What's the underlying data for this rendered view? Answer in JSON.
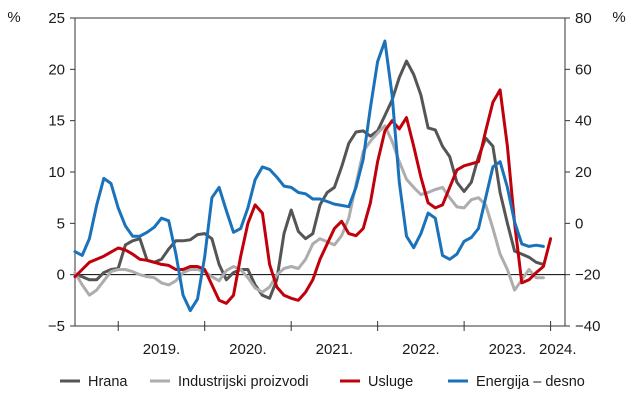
{
  "chart_data": {
    "type": "line",
    "left_axis": {
      "unit": "%",
      "min": -5,
      "max": 25,
      "ticks": [
        -5,
        0,
        5,
        10,
        15,
        20,
        25
      ]
    },
    "right_axis": {
      "unit": "%",
      "min": -40,
      "max": 80,
      "ticks": [
        -40,
        -20,
        0,
        20,
        40,
        60,
        80
      ]
    },
    "x_start": "2018-07",
    "x_end": "2024-03",
    "year_labels": [
      {
        "label": "2019.",
        "center": "2019-07"
      },
      {
        "label": "2020.",
        "center": "2020-07"
      },
      {
        "label": "2021.",
        "center": "2021-07"
      },
      {
        "label": "2022.",
        "center": "2022-07"
      },
      {
        "label": "2023.",
        "center": "2023-07"
      },
      {
        "label": "2024.",
        "center": "2024-02"
      }
    ],
    "year_boundaries": [
      "2019-01",
      "2020-01",
      "2021-01",
      "2022-01",
      "2023-01",
      "2024-01"
    ],
    "grid": false,
    "legend_position": "bottom",
    "series": [
      {
        "name": "Hrana",
        "axis": "left",
        "color": "#555555",
        "points": [
          [
            "2018-07",
            0.0
          ],
          [
            "2018-08",
            -0.2
          ],
          [
            "2018-09",
            -0.5
          ],
          [
            "2018-10",
            -0.5
          ],
          [
            "2018-11",
            0.2
          ],
          [
            "2018-12",
            0.5
          ],
          [
            "2019-01",
            0.6
          ],
          [
            "2019-02",
            2.9
          ],
          [
            "2019-03",
            3.3
          ],
          [
            "2019-04",
            3.5
          ],
          [
            "2019-05",
            1.4
          ],
          [
            "2019-06",
            1.2
          ],
          [
            "2019-07",
            1.5
          ],
          [
            "2019-08",
            2.5
          ],
          [
            "2019-09",
            3.3
          ],
          [
            "2019-10",
            3.3
          ],
          [
            "2019-11",
            3.4
          ],
          [
            "2019-12",
            3.9
          ],
          [
            "2020-01",
            4.0
          ],
          [
            "2020-02",
            3.5
          ],
          [
            "2020-03",
            1.0
          ],
          [
            "2020-04",
            -0.5
          ],
          [
            "2020-05",
            0.2
          ],
          [
            "2020-06",
            0.5
          ],
          [
            "2020-07",
            0.5
          ],
          [
            "2020-08",
            -1.0
          ],
          [
            "2020-09",
            -2.0
          ],
          [
            "2020-10",
            -2.3
          ],
          [
            "2020-11",
            -0.5
          ],
          [
            "2020-12",
            4.0
          ],
          [
            "2021-01",
            6.3
          ],
          [
            "2021-02",
            4.2
          ],
          [
            "2021-03",
            3.5
          ],
          [
            "2021-04",
            4.0
          ],
          [
            "2021-05",
            6.8
          ],
          [
            "2021-06",
            8.0
          ],
          [
            "2021-07",
            8.5
          ],
          [
            "2021-08",
            10.5
          ],
          [
            "2021-09",
            12.8
          ],
          [
            "2021-10",
            13.9
          ],
          [
            "2021-11",
            14.0
          ],
          [
            "2021-12",
            13.5
          ],
          [
            "2022-01",
            14.0
          ],
          [
            "2022-02",
            15.5
          ],
          [
            "2022-03",
            17.0
          ],
          [
            "2022-04",
            19.2
          ],
          [
            "2022-05",
            20.8
          ],
          [
            "2022-06",
            19.5
          ],
          [
            "2022-07",
            17.5
          ],
          [
            "2022-08",
            14.3
          ],
          [
            "2022-09",
            14.1
          ],
          [
            "2022-10",
            12.5
          ],
          [
            "2022-11",
            11.5
          ],
          [
            "2022-12",
            9.0
          ],
          [
            "2023-01",
            8.1
          ],
          [
            "2023-02",
            9.0
          ],
          [
            "2023-03",
            11.5
          ],
          [
            "2023-04",
            13.3
          ],
          [
            "2023-05",
            12.5
          ],
          [
            "2023-06",
            8.0
          ],
          [
            "2023-07",
            5.0
          ],
          [
            "2023-08",
            2.3
          ],
          [
            "2023-09",
            2.0
          ],
          [
            "2023-10",
            1.7
          ],
          [
            "2023-11",
            1.2
          ],
          [
            "2023-12",
            1.0
          ]
        ]
      },
      {
        "name": "Industrijski proizvodi",
        "axis": "left",
        "color": "#adadad",
        "points": [
          [
            "2018-07",
            0.2
          ],
          [
            "2018-08",
            -1.0
          ],
          [
            "2018-09",
            -2.0
          ],
          [
            "2018-10",
            -1.5
          ],
          [
            "2018-11",
            -0.6
          ],
          [
            "2018-12",
            0.3
          ],
          [
            "2019-01",
            0.5
          ],
          [
            "2019-02",
            0.5
          ],
          [
            "2019-03",
            0.3
          ],
          [
            "2019-04",
            0.0
          ],
          [
            "2019-05",
            -0.2
          ],
          [
            "2019-06",
            -0.3
          ],
          [
            "2019-07",
            -0.8
          ],
          [
            "2019-08",
            -1.0
          ],
          [
            "2019-09",
            -0.6
          ],
          [
            "2019-10",
            0.2
          ],
          [
            "2019-11",
            0.5
          ],
          [
            "2019-12",
            0.5
          ],
          [
            "2020-01",
            0.3
          ],
          [
            "2020-02",
            -0.2
          ],
          [
            "2020-03",
            -0.6
          ],
          [
            "2020-04",
            0.4
          ],
          [
            "2020-05",
            0.8
          ],
          [
            "2020-06",
            0.5
          ],
          [
            "2020-07",
            -0.3
          ],
          [
            "2020-08",
            -1.3
          ],
          [
            "2020-09",
            -1.7
          ],
          [
            "2020-10",
            -1.2
          ],
          [
            "2020-11",
            0.0
          ],
          [
            "2020-12",
            0.6
          ],
          [
            "2021-01",
            0.8
          ],
          [
            "2021-02",
            0.6
          ],
          [
            "2021-03",
            1.5
          ],
          [
            "2021-04",
            3.0
          ],
          [
            "2021-05",
            3.5
          ],
          [
            "2021-06",
            3.2
          ],
          [
            "2021-07",
            2.9
          ],
          [
            "2021-08",
            3.8
          ],
          [
            "2021-09",
            5.5
          ],
          [
            "2021-10",
            8.8
          ],
          [
            "2021-11",
            12.0
          ],
          [
            "2021-12",
            13.0
          ],
          [
            "2022-01",
            13.8
          ],
          [
            "2022-02",
            14.5
          ],
          [
            "2022-03",
            13.0
          ],
          [
            "2022-04",
            11.0
          ],
          [
            "2022-05",
            9.3
          ],
          [
            "2022-06",
            8.5
          ],
          [
            "2022-07",
            7.8
          ],
          [
            "2022-08",
            8.0
          ],
          [
            "2022-09",
            8.3
          ],
          [
            "2022-10",
            8.5
          ],
          [
            "2022-11",
            7.5
          ],
          [
            "2022-12",
            6.6
          ],
          [
            "2023-01",
            6.5
          ],
          [
            "2023-02",
            7.3
          ],
          [
            "2023-03",
            7.5
          ],
          [
            "2023-04",
            6.8
          ],
          [
            "2023-05",
            4.5
          ],
          [
            "2023-06",
            2.0
          ],
          [
            "2023-07",
            0.5
          ],
          [
            "2023-08",
            -1.5
          ],
          [
            "2023-09",
            -0.5
          ],
          [
            "2023-10",
            0.5
          ],
          [
            "2023-11",
            -0.3
          ],
          [
            "2023-12",
            -0.3
          ]
        ]
      },
      {
        "name": "Usluge",
        "axis": "left",
        "color": "#c0000b",
        "points": [
          [
            "2018-07",
            -0.2
          ],
          [
            "2018-08",
            0.5
          ],
          [
            "2018-09",
            1.2
          ],
          [
            "2018-10",
            1.5
          ],
          [
            "2018-11",
            1.8
          ],
          [
            "2018-12",
            2.2
          ],
          [
            "2019-01",
            2.6
          ],
          [
            "2019-02",
            2.4
          ],
          [
            "2019-03",
            2.0
          ],
          [
            "2019-04",
            1.5
          ],
          [
            "2019-05",
            1.4
          ],
          [
            "2019-06",
            1.2
          ],
          [
            "2019-07",
            1.0
          ],
          [
            "2019-08",
            0.9
          ],
          [
            "2019-09",
            0.5
          ],
          [
            "2019-10",
            0.5
          ],
          [
            "2019-11",
            0.8
          ],
          [
            "2019-12",
            0.8
          ],
          [
            "2020-01",
            0.5
          ],
          [
            "2020-02",
            -1.0
          ],
          [
            "2020-03",
            -2.5
          ],
          [
            "2020-04",
            -2.8
          ],
          [
            "2020-05",
            -2.0
          ],
          [
            "2020-06",
            1.8
          ],
          [
            "2020-07",
            5.0
          ],
          [
            "2020-08",
            6.8
          ],
          [
            "2020-09",
            6.0
          ],
          [
            "2020-10",
            1.0
          ],
          [
            "2020-11",
            -1.2
          ],
          [
            "2020-12",
            -2.0
          ],
          [
            "2021-01",
            -2.3
          ],
          [
            "2021-02",
            -2.5
          ],
          [
            "2021-03",
            -1.7
          ],
          [
            "2021-04",
            -0.5
          ],
          [
            "2021-05",
            1.5
          ],
          [
            "2021-06",
            3.0
          ],
          [
            "2021-07",
            4.5
          ],
          [
            "2021-08",
            5.2
          ],
          [
            "2021-09",
            4.0
          ],
          [
            "2021-10",
            3.8
          ],
          [
            "2021-11",
            4.5
          ],
          [
            "2021-12",
            7.0
          ],
          [
            "2022-01",
            11.0
          ],
          [
            "2022-02",
            14.0
          ],
          [
            "2022-03",
            15.0
          ],
          [
            "2022-04",
            14.2
          ],
          [
            "2022-05",
            15.3
          ],
          [
            "2022-06",
            12.5
          ],
          [
            "2022-07",
            9.5
          ],
          [
            "2022-08",
            7.0
          ],
          [
            "2022-09",
            6.5
          ],
          [
            "2022-10",
            6.8
          ],
          [
            "2022-11",
            8.5
          ],
          [
            "2022-12",
            10.2
          ],
          [
            "2023-01",
            10.6
          ],
          [
            "2023-02",
            10.8
          ],
          [
            "2023-03",
            11.0
          ],
          [
            "2023-04",
            14.0
          ],
          [
            "2023-05",
            16.8
          ],
          [
            "2023-06",
            18.0
          ],
          [
            "2023-07",
            12.5
          ],
          [
            "2023-08",
            5.0
          ],
          [
            "2023-09",
            -0.8
          ],
          [
            "2023-10",
            -0.5
          ],
          [
            "2023-11",
            0.2
          ],
          [
            "2023-12",
            0.8
          ],
          [
            "2024-01",
            3.5
          ]
        ]
      },
      {
        "name": "Energija – desno",
        "axis": "right",
        "color": "#1a72bb",
        "points": [
          [
            "2018-07",
            -11.0
          ],
          [
            "2018-08",
            -12.5
          ],
          [
            "2018-09",
            -6.0
          ],
          [
            "2018-10",
            7.0
          ],
          [
            "2018-11",
            17.5
          ],
          [
            "2018-12",
            15.5
          ],
          [
            "2019-01",
            6.0
          ],
          [
            "2019-02",
            -1.0
          ],
          [
            "2019-03",
            -5.0
          ],
          [
            "2019-04",
            -5.0
          ],
          [
            "2019-05",
            -3.5
          ],
          [
            "2019-06",
            -1.5
          ],
          [
            "2019-07",
            2.0
          ],
          [
            "2019-08",
            1.0
          ],
          [
            "2019-09",
            -12.0
          ],
          [
            "2019-10",
            -28.0
          ],
          [
            "2019-11",
            -34.0
          ],
          [
            "2019-12",
            -29.5
          ],
          [
            "2020-01",
            -13.0
          ],
          [
            "2020-02",
            10.0
          ],
          [
            "2020-03",
            14.0
          ],
          [
            "2020-04",
            5.0
          ],
          [
            "2020-05",
            -3.5
          ],
          [
            "2020-06",
            -2.0
          ],
          [
            "2020-07",
            6.0
          ],
          [
            "2020-08",
            17.0
          ],
          [
            "2020-09",
            22.0
          ],
          [
            "2020-10",
            21.0
          ],
          [
            "2020-11",
            18.0
          ],
          [
            "2020-12",
            14.5
          ],
          [
            "2021-01",
            14.0
          ],
          [
            "2021-02",
            12.0
          ],
          [
            "2021-03",
            11.5
          ],
          [
            "2021-04",
            9.5
          ],
          [
            "2021-05",
            9.5
          ],
          [
            "2021-06",
            8.5
          ],
          [
            "2021-07",
            7.5
          ],
          [
            "2021-08",
            7.0
          ],
          [
            "2021-09",
            6.5
          ],
          [
            "2021-10",
            14.0
          ],
          [
            "2021-11",
            25.0
          ],
          [
            "2021-12",
            45.0
          ],
          [
            "2022-01",
            63.0
          ],
          [
            "2022-02",
            71.0
          ],
          [
            "2022-03",
            50.0
          ],
          [
            "2022-04",
            16.0
          ],
          [
            "2022-05",
            -5.0
          ],
          [
            "2022-06",
            -9.5
          ],
          [
            "2022-07",
            -4.0
          ],
          [
            "2022-08",
            4.0
          ],
          [
            "2022-09",
            2.0
          ],
          [
            "2022-10",
            -12.5
          ],
          [
            "2022-11",
            -14.0
          ],
          [
            "2022-12",
            -12.0
          ],
          [
            "2023-01",
            -7.0
          ],
          [
            "2023-02",
            -5.5
          ],
          [
            "2023-03",
            -2.0
          ],
          [
            "2023-04",
            10.0
          ],
          [
            "2023-05",
            22.0
          ],
          [
            "2023-06",
            24.0
          ],
          [
            "2023-07",
            14.0
          ],
          [
            "2023-08",
            0.5
          ],
          [
            "2023-09",
            -8.0
          ],
          [
            "2023-10",
            -9.0
          ],
          [
            "2023-11",
            -8.5
          ],
          [
            "2023-12",
            -9.0
          ]
        ]
      }
    ]
  }
}
